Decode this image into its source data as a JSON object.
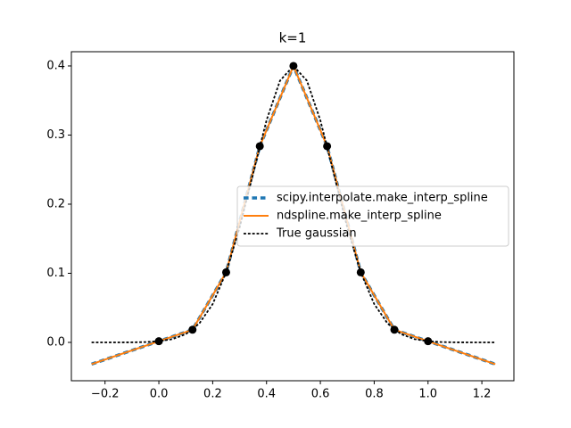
{
  "chart_data": {
    "type": "line",
    "title": "k=1",
    "xlim": [
      -0.325,
      1.319
    ],
    "ylim": [
      -0.0555,
      0.4206
    ],
    "xticks": [
      {
        "value": -0.2,
        "label": "−0.2"
      },
      {
        "value": 0,
        "label": "0.0"
      },
      0.2,
      0.4,
      0.6,
      0.8,
      {
        "value": 1,
        "label": "1.0"
      },
      1.2
    ],
    "yticks": [
      {
        "value": 0,
        "label": "0.0"
      },
      0.1,
      0.2,
      0.3,
      0.4
    ],
    "legend": "center right",
    "series": [
      {
        "name": "scipy.interpolate.make_interp_spline",
        "color": "#1f77b4",
        "linestyle": "dashed",
        "linewidth": 3.5,
        "x": [
          -0.25,
          0,
          0.125,
          0.25,
          0.375,
          0.5,
          0.625,
          0.75,
          0.875,
          1,
          1.25
        ],
        "values": [
          -0.0315,
          0.0017,
          0.0183,
          0.1014,
          0.2839,
          0.4,
          0.2839,
          0.1014,
          0.0183,
          0.0017,
          -0.0315
        ]
      },
      {
        "name": "ndspline.make_interp_spline",
        "color": "#ff7f0e",
        "linestyle": "solid",
        "linewidth": 2,
        "x": [
          -0.25,
          0,
          0.125,
          0.25,
          0.375,
          0.5,
          0.625,
          0.75,
          0.875,
          1,
          1.25
        ],
        "values": [
          -0.0315,
          0.0017,
          0.0183,
          0.1014,
          0.2839,
          0.4,
          0.2839,
          0.1014,
          0.0183,
          0.0017,
          -0.0315
        ]
      },
      {
        "name": "True gaussian",
        "color": "#000000",
        "linestyle": "dashed",
        "linewidth": 1.8,
        "x": [
          -0.25,
          -0.2,
          -0.15,
          -0.1,
          -0.05,
          0,
          0.05,
          0.1,
          0.15,
          0.2,
          0.25,
          0.3,
          0.35,
          0.4,
          0.45,
          0.5,
          0.55,
          0.6,
          0.65,
          0.7,
          0.75,
          0.8,
          0.85,
          0.9,
          0.95,
          1,
          1.05,
          1.1,
          1.15,
          1.2,
          1.25
        ],
        "values": [
          0,
          0,
          0,
          0.0001,
          0.0005,
          0.0017,
          0.0047,
          0.0119,
          0.0272,
          0.0555,
          0.1014,
          0.1662,
          0.2441,
          0.3212,
          0.3787,
          0.4,
          0.3787,
          0.3212,
          0.2441,
          0.1662,
          0.1014,
          0.0555,
          0.0272,
          0.0119,
          0.0047,
          0.0017,
          0.0005,
          0.0001,
          0,
          0,
          0
        ]
      }
    ],
    "points": {
      "color": "#000000",
      "x": [
        0,
        0.125,
        0.25,
        0.375,
        0.5,
        0.625,
        0.75,
        0.875,
        1
      ],
      "values": [
        0.0017,
        0.0183,
        0.1014,
        0.2839,
        0.4,
        0.2839,
        0.1014,
        0.0183,
        0.0017
      ]
    }
  }
}
